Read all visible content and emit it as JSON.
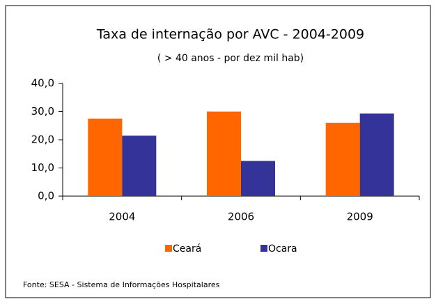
{
  "chart_data": {
    "type": "bar",
    "title": "Taxa de internação por AVC - 2004-2009",
    "subtitle": "( > 40 anos - por dez mil hab)",
    "categories": [
      "2004",
      "2006",
      "2009"
    ],
    "series": [
      {
        "name": "Ceará",
        "color": "#ff6600",
        "values": [
          27.5,
          30,
          26
        ]
      },
      {
        "name": "Ocara",
        "color": "#333399",
        "values": [
          21.5,
          12.5,
          29.3
        ]
      }
    ],
    "ylim": [
      0,
      40
    ],
    "yticks": [
      {
        "value": 0,
        "label": "0,0"
      },
      {
        "value": 10,
        "label": "10,0"
      },
      {
        "value": 20,
        "label": "20,0"
      },
      {
        "value": 30,
        "label": "30,0"
      },
      {
        "value": 40,
        "label": "40,0"
      }
    ],
    "legend": "bottom",
    "source": "Fonte: SESA - Sistema de Informações Hospitalares"
  }
}
